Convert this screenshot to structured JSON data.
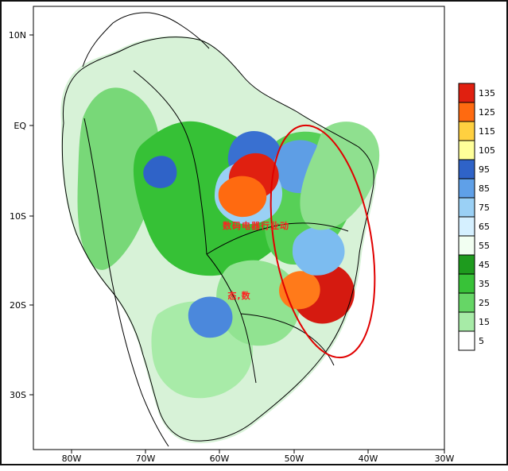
{
  "map": {
    "x_ticks": [
      "80W",
      "70W",
      "60W",
      "50W",
      "40W",
      "30W"
    ],
    "y_ticks": [
      "10N",
      "EQ",
      "10S",
      "20S",
      "30S"
    ],
    "accent_circle_color": "#e00000"
  },
  "legend": {
    "values": [
      "135",
      "125",
      "115",
      "105",
      "95",
      "85",
      "75",
      "65",
      "55",
      "45",
      "35",
      "25",
      "15",
      "5"
    ],
    "colors": [
      "#e02010",
      "#ff6a10",
      "#ffd040",
      "#ffff99",
      "#2f63c8",
      "#5fa0e8",
      "#9ad0f5",
      "#d5f0ff",
      "#f2fff2",
      "#1e9b1e",
      "#38c238",
      "#66d666",
      "#a7eba7",
      "#ffffff"
    ]
  },
  "overlay": {
    "line1": "数码电器行业动",
    "line2": "态,数"
  }
}
